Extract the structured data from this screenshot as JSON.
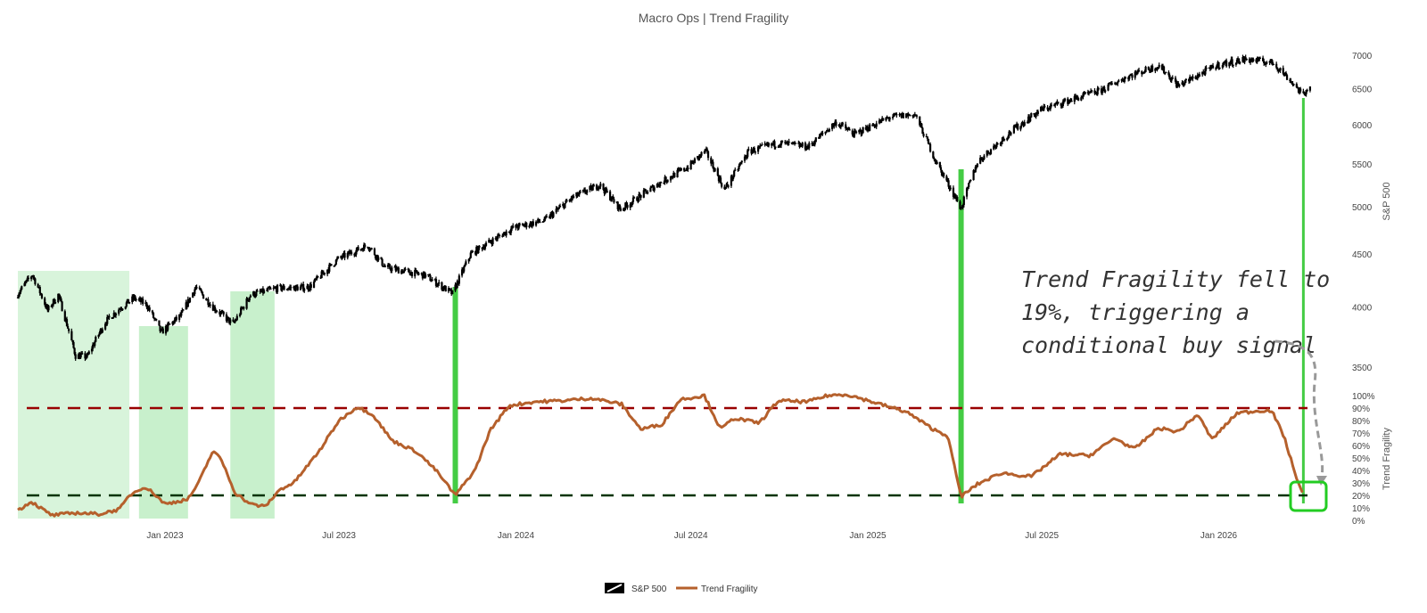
{
  "chart_data": {
    "type": "line",
    "title": "Macro Ops | Trend Fragility",
    "x_ticks": [
      "Jan 2023",
      "Jul 2023",
      "Jan 2024",
      "Jul 2024",
      "Jan 2025",
      "Jul 2025",
      "Jan 2026"
    ],
    "y_price": {
      "label": "S&P 500",
      "ticks": [
        3500,
        4000,
        4500,
        5000,
        5500,
        6000,
        6500,
        7000
      ],
      "scale": "log"
    },
    "y_fragility": {
      "label": "Trend Fragility",
      "ticks": [
        "0%",
        "10%",
        "20%",
        "30%",
        "40%",
        "50%",
        "60%",
        "70%",
        "80%",
        "90%",
        "100%"
      ],
      "range": [
        0,
        1
      ]
    },
    "thresholds": [
      {
        "value": 0.9,
        "color": "#990000"
      },
      {
        "value": 0.2,
        "color": "#003300"
      }
    ],
    "signal_zones": [
      {
        "start": "2022-08-01",
        "end": "2022-11-25"
      },
      {
        "start": "2022-12-05",
        "end": "2023-01-25"
      },
      {
        "start": "2023-03-10",
        "end": "2023-04-25"
      }
    ],
    "signal_lines": [
      "2023-10-30",
      "2025-04-08",
      "2026-03-30"
    ],
    "series": [
      {
        "name": "S&P 500",
        "color": "#000000",
        "points": [
          [
            "2022-08-01",
            4120
          ],
          [
            "2022-08-16",
            4300
          ],
          [
            "2022-09-01",
            3970
          ],
          [
            "2022-09-12",
            4110
          ],
          [
            "2022-09-30",
            3590
          ],
          [
            "2022-10-12",
            3580
          ],
          [
            "2022-10-31",
            3870
          ],
          [
            "2022-11-15",
            3990
          ],
          [
            "2022-11-30",
            4080
          ],
          [
            "2022-12-13",
            4020
          ],
          [
            "2022-12-28",
            3780
          ],
          [
            "2023-01-18",
            3930
          ],
          [
            "2023-02-02",
            4180
          ],
          [
            "2023-02-20",
            4000
          ],
          [
            "2023-03-13",
            3850
          ],
          [
            "2023-03-31",
            4110
          ],
          [
            "2023-04-28",
            4170
          ],
          [
            "2023-05-31",
            4180
          ],
          [
            "2023-06-30",
            4450
          ],
          [
            "2023-07-31",
            4590
          ],
          [
            "2023-08-18",
            4370
          ],
          [
            "2023-09-29",
            4290
          ],
          [
            "2023-10-27",
            4120
          ],
          [
            "2023-11-15",
            4500
          ],
          [
            "2023-12-29",
            4770
          ],
          [
            "2024-01-31",
            4850
          ],
          [
            "2024-02-29",
            5100
          ],
          [
            "2024-03-28",
            5250
          ],
          [
            "2024-04-19",
            4970
          ],
          [
            "2024-05-31",
            5280
          ],
          [
            "2024-06-28",
            5460
          ],
          [
            "2024-07-16",
            5660
          ],
          [
            "2024-08-05",
            5190
          ],
          [
            "2024-08-30",
            5650
          ],
          [
            "2024-09-30",
            5760
          ],
          [
            "2024-10-31",
            5710
          ],
          [
            "2024-11-29",
            6030
          ],
          [
            "2024-12-18",
            5870
          ],
          [
            "2025-01-24",
            6100
          ],
          [
            "2025-02-19",
            6140
          ],
          [
            "2025-03-13",
            5520
          ],
          [
            "2025-04-08",
            4980
          ],
          [
            "2025-04-25",
            5520
          ],
          [
            "2025-05-30",
            5910
          ],
          [
            "2025-06-30",
            6200
          ],
          [
            "2025-07-31",
            6340
          ],
          [
            "2025-08-29",
            6460
          ],
          [
            "2025-09-30",
            6690
          ],
          [
            "2025-10-31",
            6840
          ],
          [
            "2025-11-20",
            6540
          ],
          [
            "2025-12-31",
            6850
          ],
          [
            "2026-01-30",
            6940
          ],
          [
            "2026-02-27",
            6880
          ],
          [
            "2026-03-23",
            6520
          ],
          [
            "2026-03-30",
            6390
          ],
          [
            "2026-04-06",
            6580
          ]
        ]
      },
      {
        "name": "Trend Fragility",
        "color": "#B5602C",
        "points": [
          [
            "2022-08-01",
            0.08
          ],
          [
            "2022-08-15",
            0.15
          ],
          [
            "2022-09-05",
            0.04
          ],
          [
            "2022-10-01",
            0.06
          ],
          [
            "2022-10-25",
            0.05
          ],
          [
            "2022-11-15",
            0.09
          ],
          [
            "2022-11-25",
            0.2
          ],
          [
            "2022-12-10",
            0.27
          ],
          [
            "2022-12-20",
            0.22
          ],
          [
            "2023-01-01",
            0.13
          ],
          [
            "2023-01-25",
            0.17
          ],
          [
            "2023-02-05",
            0.3
          ],
          [
            "2023-02-20",
            0.56
          ],
          [
            "2023-03-01",
            0.48
          ],
          [
            "2023-03-15",
            0.22
          ],
          [
            "2023-03-31",
            0.13
          ],
          [
            "2023-04-15",
            0.11
          ],
          [
            "2023-05-01",
            0.25
          ],
          [
            "2023-05-15",
            0.3
          ],
          [
            "2023-06-10",
            0.55
          ],
          [
            "2023-07-01",
            0.8
          ],
          [
            "2023-07-20",
            0.91
          ],
          [
            "2023-08-05",
            0.85
          ],
          [
            "2023-08-25",
            0.64
          ],
          [
            "2023-09-20",
            0.55
          ],
          [
            "2023-10-10",
            0.4
          ],
          [
            "2023-10-30",
            0.2
          ],
          [
            "2023-11-20",
            0.41
          ],
          [
            "2023-12-05",
            0.72
          ],
          [
            "2023-12-25",
            0.92
          ],
          [
            "2024-01-20",
            0.95
          ],
          [
            "2024-02-20",
            0.96
          ],
          [
            "2024-03-20",
            0.98
          ],
          [
            "2024-04-20",
            0.93
          ],
          [
            "2024-05-10",
            0.73
          ],
          [
            "2024-06-01",
            0.77
          ],
          [
            "2024-06-20",
            0.97
          ],
          [
            "2024-07-15",
            1.0
          ],
          [
            "2024-08-01",
            0.73
          ],
          [
            "2024-08-15",
            0.82
          ],
          [
            "2024-09-10",
            0.78
          ],
          [
            "2024-09-30",
            0.96
          ],
          [
            "2024-10-30",
            0.95
          ],
          [
            "2024-11-20",
            1.0
          ],
          [
            "2024-12-10",
            1.01
          ],
          [
            "2025-01-10",
            0.94
          ],
          [
            "2025-02-10",
            0.87
          ],
          [
            "2025-03-10",
            0.73
          ],
          [
            "2025-03-25",
            0.68
          ],
          [
            "2025-04-08",
            0.19
          ],
          [
            "2025-04-25",
            0.29
          ],
          [
            "2025-05-20",
            0.38
          ],
          [
            "2025-06-20",
            0.35
          ],
          [
            "2025-07-20",
            0.53
          ],
          [
            "2025-08-20",
            0.52
          ],
          [
            "2025-09-15",
            0.66
          ],
          [
            "2025-10-05",
            0.57
          ],
          [
            "2025-10-30",
            0.74
          ],
          [
            "2025-11-20",
            0.71
          ],
          [
            "2025-12-10",
            0.85
          ],
          [
            "2025-12-25",
            0.65
          ],
          [
            "2026-01-20",
            0.86
          ],
          [
            "2026-02-15",
            0.88
          ],
          [
            "2026-02-25",
            0.88
          ],
          [
            "2026-03-10",
            0.67
          ],
          [
            "2026-03-20",
            0.41
          ],
          [
            "2026-03-30",
            0.19
          ]
        ]
      }
    ],
    "annotation": {
      "lines": [
        "Trend Fragility fell to",
        "19%, triggering a",
        "conditional buy signal"
      ]
    },
    "legend": [
      "S&P 500",
      "Trend Fragility"
    ],
    "legend_position": "bottom-center",
    "grid": false
  },
  "colors": {
    "zone_fill": "#c8f0cc",
    "signal_line": "#44cc44",
    "highlight_box": "#22cc22",
    "arrow": "#999999"
  }
}
